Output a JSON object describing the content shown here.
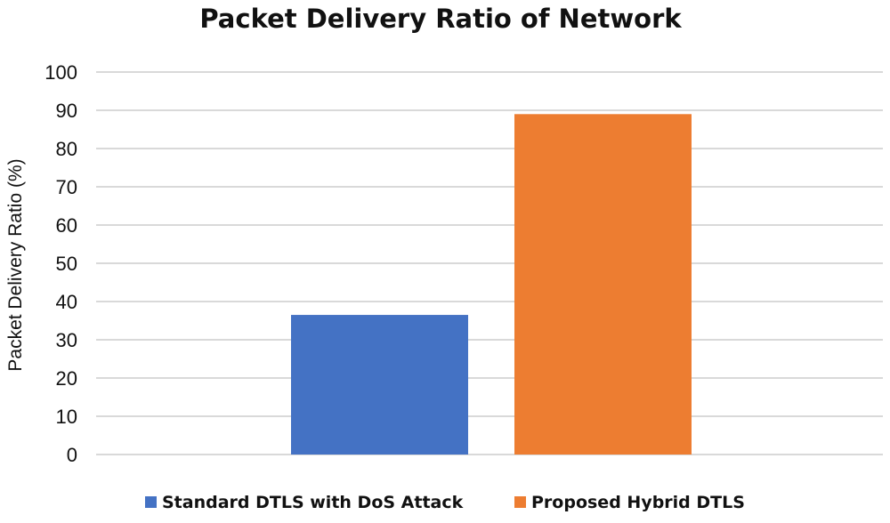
{
  "chart_data": {
    "type": "bar",
    "title": "Packet Delivery Ratio of Network",
    "xlabel": "",
    "ylabel": "Packet Delivery Ratio (%)",
    "ylim": [
      0,
      100
    ],
    "yticks": [
      0,
      10,
      20,
      30,
      40,
      50,
      60,
      70,
      80,
      90,
      100
    ],
    "grid": true,
    "legend_position": "bottom",
    "categories": [
      ""
    ],
    "series": [
      {
        "name": "Standard DTLS with DoS Attack",
        "values": [
          36.5
        ],
        "color": "#4472c4"
      },
      {
        "name": "Proposed Hybrid DTLS",
        "values": [
          89
        ],
        "color": "#ed7d31"
      }
    ]
  }
}
